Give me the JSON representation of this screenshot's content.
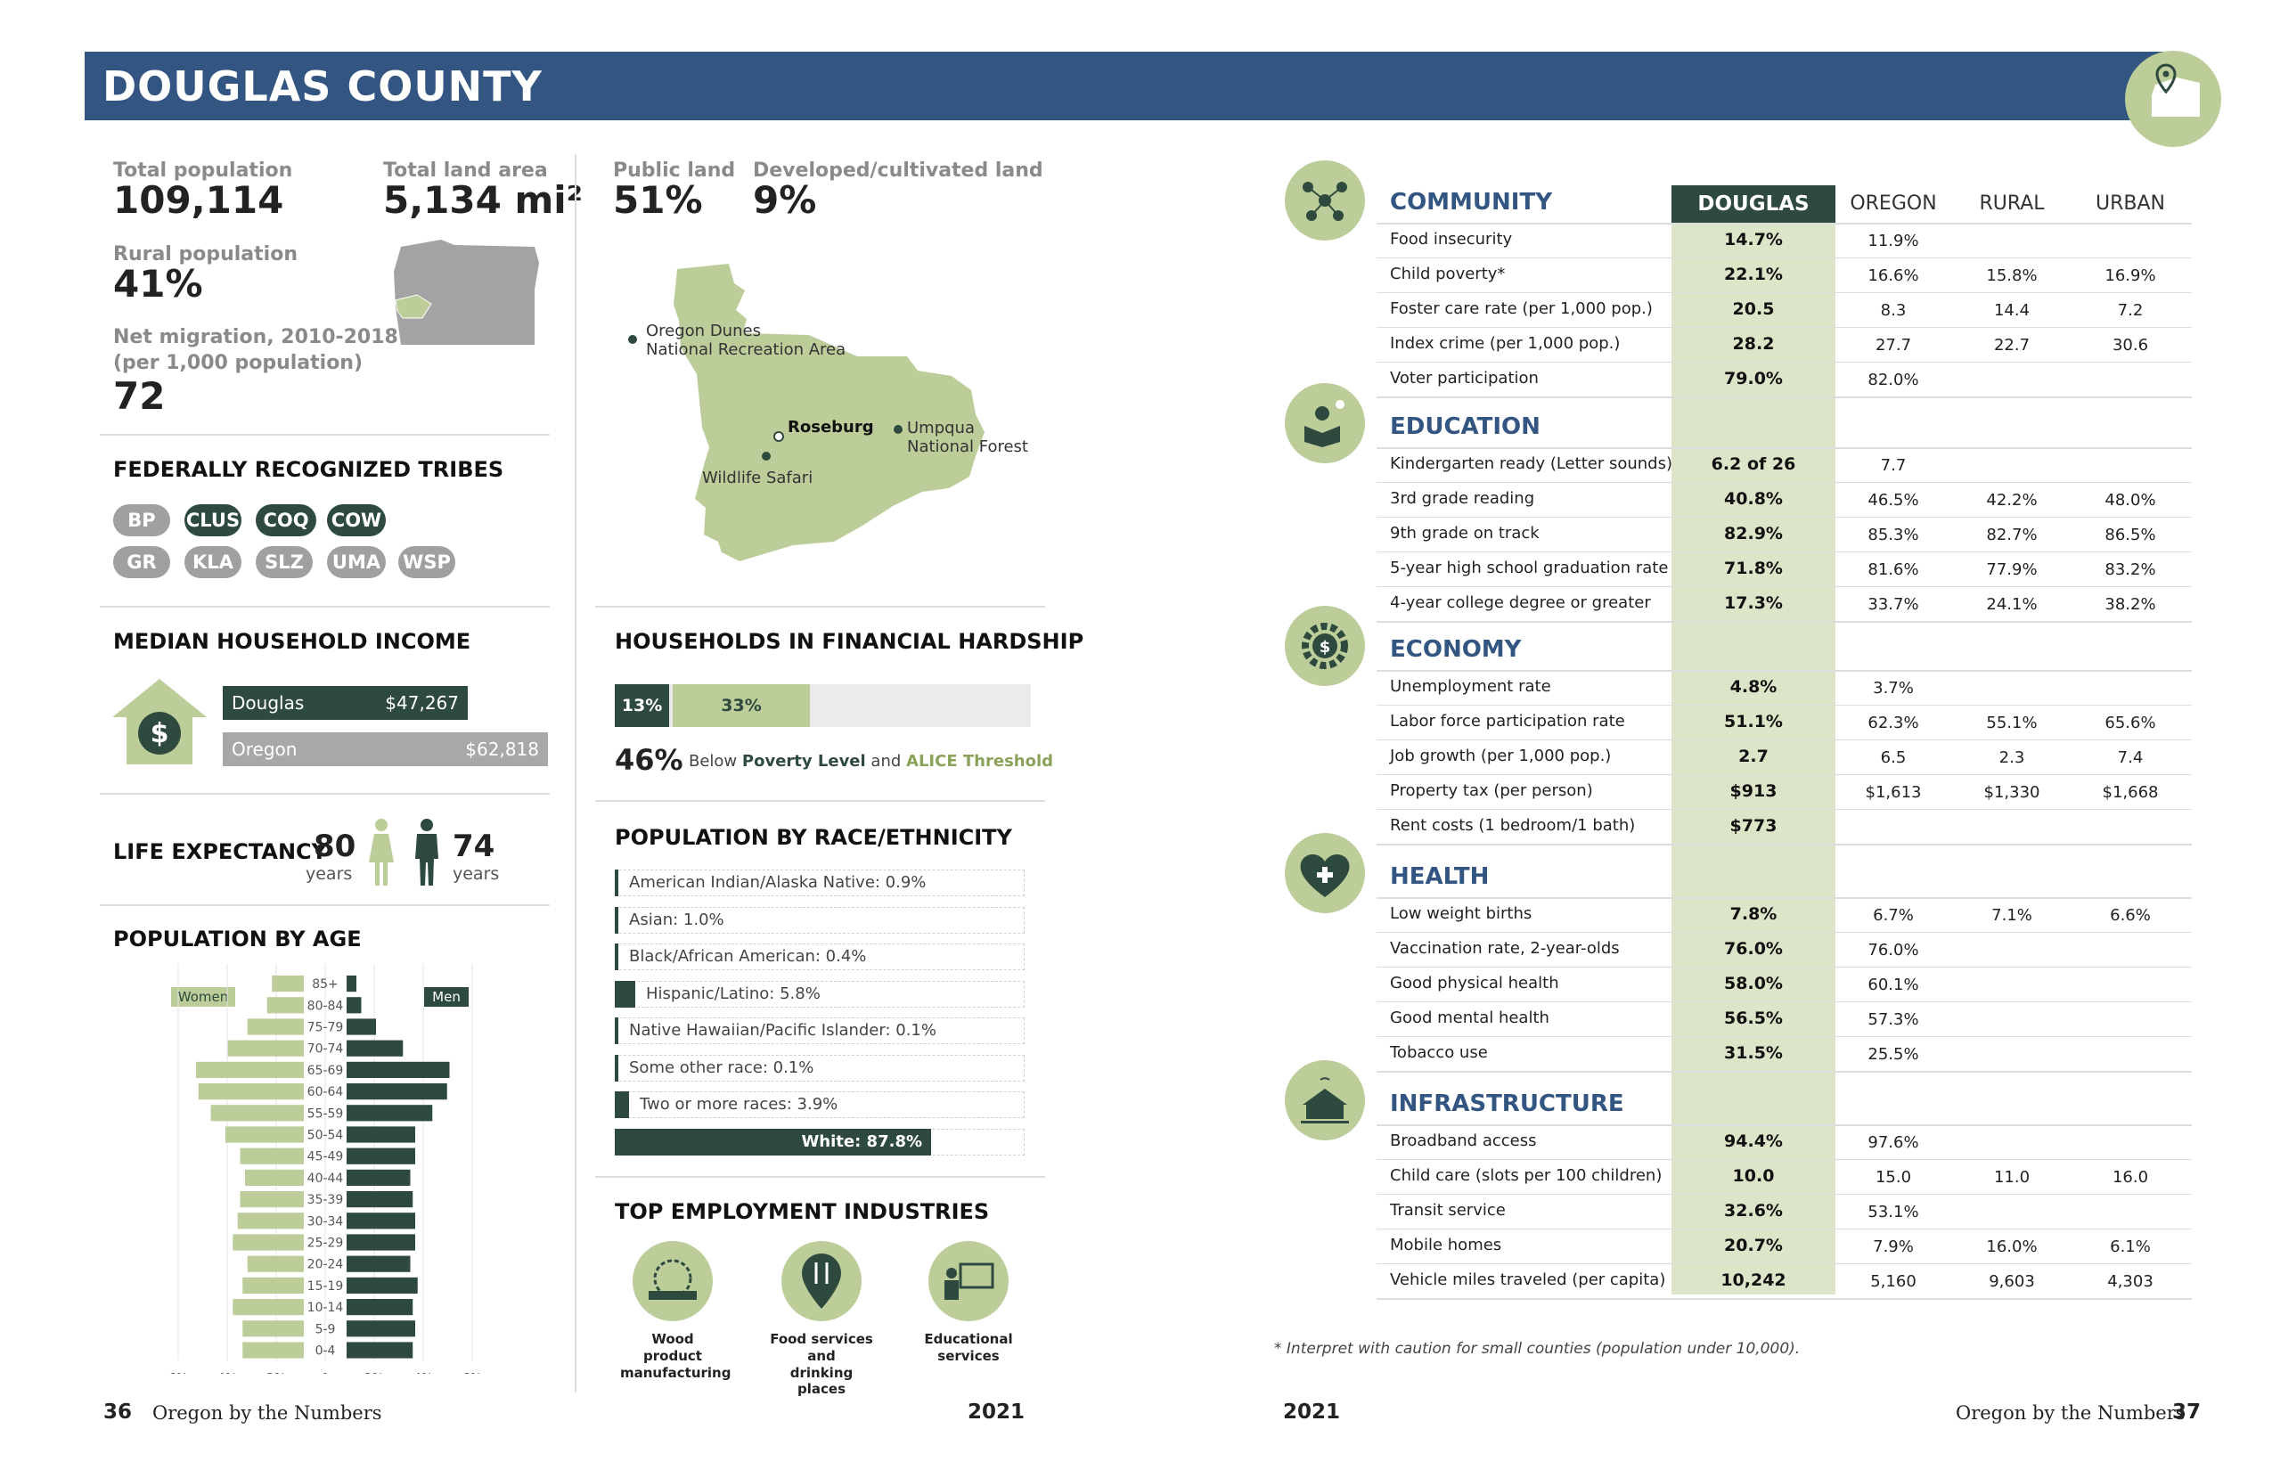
{
  "banner": {
    "title": "DOUGLAS COUNTY"
  },
  "stats": {
    "total_population_label": "Total population",
    "total_population": "109,114",
    "land_area_label": "Total land area",
    "land_area": "5,134 mi²",
    "rural_label": "Rural population",
    "rural": "41%",
    "migration_label_1": "Net migration, 2010-2018",
    "migration_label_2": "(per 1,000 population)",
    "migration": "72",
    "public_land_label": "Public land",
    "public_land": "51%",
    "developed_label": "Developed/cultivated land",
    "developed": "9%"
  },
  "map_labels": {
    "dunes_1": "Oregon Dunes",
    "dunes_2": "National Recreation Area",
    "roseburg": "Roseburg",
    "umpqua_1": "Umpqua",
    "umpqua_2": "National Forest",
    "safari": "Wildlife Safari"
  },
  "tribes": {
    "title": "FEDERALLY RECOGNIZED TRIBES",
    "items": [
      "BP",
      "CLUS",
      "COQ",
      "COW",
      "GR",
      "KLA",
      "SLZ",
      "UMA",
      "WSP"
    ]
  },
  "income": {
    "title": "MEDIAN HOUSEHOLD INCOME",
    "rows": [
      {
        "name": "Douglas",
        "value": "$47,267",
        "amount": 47267
      },
      {
        "name": "Oregon",
        "value": "$62,818",
        "amount": 62818
      }
    ]
  },
  "life": {
    "title": "LIFE EXPECTANCY",
    "women": "80",
    "men": "74",
    "unit": "years"
  },
  "pyramid": {
    "title": "POPULATION BY AGE",
    "women_label": "Women",
    "men_label": "Men",
    "ages": [
      "85+",
      "80-84",
      "75-79",
      "70-74",
      "65-69",
      "60-64",
      "55-59",
      "50-54",
      "45-49",
      "40-44",
      "35-39",
      "30-34",
      "25-29",
      "20-24",
      "15-19",
      "10-14",
      "5-9",
      "0-4"
    ],
    "women": [
      1.3,
      1.5,
      2.3,
      3.1,
      4.4,
      4.3,
      3.8,
      3.2,
      2.6,
      2.4,
      2.6,
      2.7,
      2.9,
      2.3,
      2.5,
      2.9,
      2.5,
      2.5
    ],
    "men": [
      0.4,
      0.6,
      1.2,
      2.3,
      4.2,
      4.1,
      3.5,
      2.8,
      2.8,
      2.6,
      2.7,
      2.8,
      2.8,
      2.6,
      2.9,
      2.7,
      2.8,
      2.7
    ],
    "ticks": [
      "6%",
      "4%",
      "2%",
      "0",
      "2%",
      "4%",
      "6%"
    ]
  },
  "hardship": {
    "title": "HOUSEHOLDS IN FINANCIAL HARDSHIP",
    "poverty": "13%",
    "alice": "33%",
    "poverty_frac": 0.13,
    "alice_frac": 0.33,
    "total": "46%",
    "text_a": "Below",
    "poverty_label": "Poverty Level",
    "text_and": "and",
    "alice_label": "ALICE Threshold"
  },
  "race": {
    "title": "POPULATION BY RACE/ETHNICITY",
    "rows": [
      {
        "label": "American Indian/Alaska Native: 0.9%",
        "pct": 0.9
      },
      {
        "label": "Asian: 1.0%",
        "pct": 1.0
      },
      {
        "label": "Black/African American: 0.4%",
        "pct": 0.4
      },
      {
        "label": "Hispanic/Latino: 5.8%",
        "pct": 5.8
      },
      {
        "label": "Native Hawaiian/Pacific Islander: 0.1%",
        "pct": 0.1
      },
      {
        "label": "Some other race: 0.1%",
        "pct": 0.1
      },
      {
        "label": "Two or more races: 3.9%",
        "pct": 3.9
      },
      {
        "label": "White: 87.8%",
        "pct": 87.8
      }
    ]
  },
  "industries": {
    "title": "TOP EMPLOYMENT INDUSTRIES",
    "items": [
      {
        "l1": "Wood product",
        "l2": "manufacturing"
      },
      {
        "l1": "Food services and",
        "l2": "drinking places"
      },
      {
        "l1": "Educational",
        "l2": "services"
      }
    ]
  },
  "table": {
    "headers": [
      "DOUGLAS",
      "OREGON",
      "RURAL",
      "URBAN"
    ],
    "sections": [
      {
        "name": "COMMUNITY",
        "rows": [
          [
            "Food insecurity",
            "14.7%",
            "11.9%",
            "",
            ""
          ],
          [
            "Child poverty*",
            "22.1%",
            "16.6%",
            "15.8%",
            "16.9%"
          ],
          [
            "Foster care rate (per 1,000 pop.)",
            "20.5",
            "8.3",
            "14.4",
            "7.2"
          ],
          [
            "Index crime (per 1,000 pop.)",
            "28.2",
            "27.7",
            "22.7",
            "30.6"
          ],
          [
            "Voter participation",
            "79.0%",
            "82.0%",
            "",
            ""
          ]
        ]
      },
      {
        "name": "EDUCATION",
        "rows": [
          [
            "Kindergarten ready (Letter sounds)",
            "6.2 of 26",
            "7.7",
            "",
            ""
          ],
          [
            "3rd grade reading",
            "40.8%",
            "46.5%",
            "42.2%",
            "48.0%"
          ],
          [
            "9th grade on track",
            "82.9%",
            "85.3%",
            "82.7%",
            "86.5%"
          ],
          [
            "5-year high school graduation rate",
            "71.8%",
            "81.6%",
            "77.9%",
            "83.2%"
          ],
          [
            "4-year college degree or greater",
            "17.3%",
            "33.7%",
            "24.1%",
            "38.2%"
          ]
        ]
      },
      {
        "name": "ECONOMY",
        "rows": [
          [
            "Unemployment rate",
            "4.8%",
            "3.7%",
            "",
            ""
          ],
          [
            "Labor force participation rate",
            "51.1%",
            "62.3%",
            "55.1%",
            "65.6%"
          ],
          [
            "Job growth (per 1,000 pop.)",
            "2.7",
            "6.5",
            "2.3",
            "7.4"
          ],
          [
            "Property tax (per person)",
            "$913",
            "$1,613",
            "$1,330",
            "$1,668"
          ],
          [
            "Rent costs (1 bedroom/1 bath)",
            "$773",
            "",
            "",
            ""
          ]
        ]
      },
      {
        "name": "HEALTH",
        "rows": [
          [
            "Low weight births",
            "7.8%",
            "6.7%",
            "7.1%",
            "6.6%"
          ],
          [
            "Vaccination rate, 2-year-olds",
            "76.0%",
            "76.0%",
            "",
            ""
          ],
          [
            "Good physical health",
            "58.0%",
            "60.1%",
            "",
            ""
          ],
          [
            "Good mental health",
            "56.5%",
            "57.3%",
            "",
            ""
          ],
          [
            "Tobacco use",
            "31.5%",
            "25.5%",
            "",
            ""
          ]
        ]
      },
      {
        "name": "INFRASTRUCTURE",
        "rows": [
          [
            "Broadband access",
            "94.4%",
            "97.6%",
            "",
            ""
          ],
          [
            "Child care (slots per 100 children)",
            "10.0",
            "15.0",
            "11.0",
            "16.0"
          ],
          [
            "Transit service",
            "32.6%",
            "53.1%",
            "",
            ""
          ],
          [
            "Mobile homes",
            "20.7%",
            "7.9%",
            "16.0%",
            "6.1%"
          ],
          [
            "Vehicle miles traveled (per capita)",
            "10,242",
            "5,160",
            "9,603",
            "4,303"
          ]
        ]
      }
    ],
    "note": "* Interpret with caution for small counties (population under 10,000)."
  },
  "footer": {
    "left_page": "36",
    "left_title": "Oregon by the Numbers",
    "left_year": "2021",
    "right_year": "2021",
    "right_title": "Oregon by the Numbers",
    "right_page": "37"
  },
  "colors": {
    "banner": "#325681",
    "dark": "#2e4a3e",
    "light": "#bccd9a",
    "highlight": "#dde5c8"
  }
}
